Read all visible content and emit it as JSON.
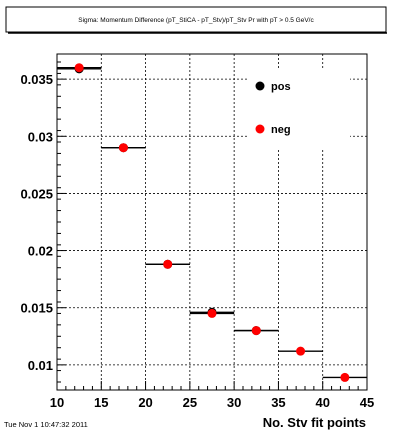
{
  "chart_data": {
    "type": "scatter",
    "title": "Sigma: Momentum Difference (pT_StiCA - pT_Stv)/pT_Stv Pr with pT > 0.5 GeV/c",
    "xlabel": "No. Stv fit points",
    "ylabel": "",
    "xlim": [
      10,
      45
    ],
    "ylim": [
      0.0078,
      0.0372
    ],
    "grid": true,
    "legend_position": "top-right",
    "x_ticks": [
      "10",
      "15",
      "20",
      "25",
      "30",
      "35",
      "40",
      "45"
    ],
    "y_ticks": [
      "0.01",
      "0.015",
      "0.02",
      "0.025",
      "0.03",
      "0.035"
    ],
    "x_tick_values": [
      10,
      15,
      20,
      25,
      30,
      35,
      40,
      45
    ],
    "y_tick_values": [
      0.01,
      0.015,
      0.02,
      0.025,
      0.03,
      0.035
    ],
    "bins": [
      [
        10,
        15
      ],
      [
        15,
        20
      ],
      [
        20,
        25
      ],
      [
        25,
        30
      ],
      [
        30,
        35
      ],
      [
        35,
        40
      ],
      [
        40,
        45
      ]
    ],
    "series": [
      {
        "name": "pos",
        "color": "#000000",
        "x": [
          12.5,
          17.5,
          22.5,
          27.5,
          32.5
        ],
        "y": [
          0.0359,
          0.029,
          0.0188,
          0.0146,
          0.013
        ]
      },
      {
        "name": "neg",
        "color": "#ff0000",
        "x": [
          12.5,
          17.5,
          22.5,
          27.5,
          32.5,
          37.5,
          42.5
        ],
        "y": [
          0.036,
          0.029,
          0.0188,
          0.0145,
          0.013,
          0.0112,
          0.0089
        ]
      }
    ]
  },
  "footer": {
    "timestamp": "Tue Nov  1 10:47:32 2011"
  }
}
